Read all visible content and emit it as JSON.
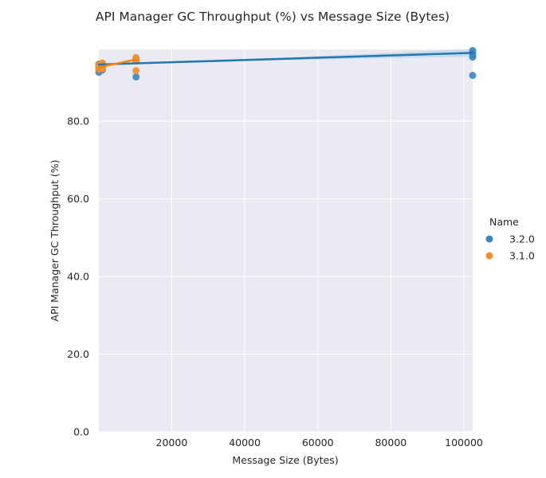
{
  "chart_data": {
    "type": "scatter",
    "title": "API Manager GC Throughput (%) vs Message Size (Bytes)",
    "xlabel": "Message Size (Bytes)",
    "ylabel": "API Manager GC Throughput (%)",
    "xlim": [
      50,
      102400
    ],
    "ylim": [
      0,
      98.5
    ],
    "x_ticks": [
      20000,
      40000,
      60000,
      80000,
      100000
    ],
    "x_tick_labels": [
      "20000",
      "40000",
      "60000",
      "80000",
      "100000"
    ],
    "y_ticks": [
      0,
      20,
      40,
      60,
      80
    ],
    "y_tick_labels": [
      "0.0",
      "20.0",
      "40.0",
      "60.0",
      "80.0"
    ],
    "grid": true,
    "legend": {
      "title": "Name",
      "placement": "right"
    },
    "series": [
      {
        "name": "3.2.0",
        "color": "#3a87c0",
        "line_color": "#1f77b4",
        "points": [
          {
            "x": 50,
            "y": 92.6
          },
          {
            "x": 50,
            "y": 93.6
          },
          {
            "x": 50,
            "y": 94.2
          },
          {
            "x": 50,
            "y": 94.7
          },
          {
            "x": 1024,
            "y": 93.2
          },
          {
            "x": 1024,
            "y": 94.0
          },
          {
            "x": 1024,
            "y": 94.6
          },
          {
            "x": 10240,
            "y": 91.4
          },
          {
            "x": 10240,
            "y": 95.6
          },
          {
            "x": 10240,
            "y": 96.0
          },
          {
            "x": 102400,
            "y": 91.8
          },
          {
            "x": 102400,
            "y": 96.5
          },
          {
            "x": 102400,
            "y": 97.0
          },
          {
            "x": 102400,
            "y": 97.6
          },
          {
            "x": 102400,
            "y": 98.2
          }
        ],
        "trend": {
          "x": [
            50,
            102400
          ],
          "y": [
            94.6,
            97.6
          ]
        }
      },
      {
        "name": "3.1.0",
        "color": "#f28e2b",
        "line_color": "#ff7f0e",
        "points": [
          {
            "x": 50,
            "y": 93.4
          },
          {
            "x": 50,
            "y": 94.1
          },
          {
            "x": 50,
            "y": 94.6
          },
          {
            "x": 1024,
            "y": 93.5
          },
          {
            "x": 1024,
            "y": 94.0
          },
          {
            "x": 1024,
            "y": 94.4
          },
          {
            "x": 1024,
            "y": 95.0
          },
          {
            "x": 10240,
            "y": 93.0
          },
          {
            "x": 10240,
            "y": 95.5
          },
          {
            "x": 10240,
            "y": 96.0
          },
          {
            "x": 10240,
            "y": 96.4
          }
        ],
        "trend": {
          "x": [
            50,
            10240
          ],
          "y": [
            93.9,
            95.9
          ]
        }
      }
    ]
  }
}
